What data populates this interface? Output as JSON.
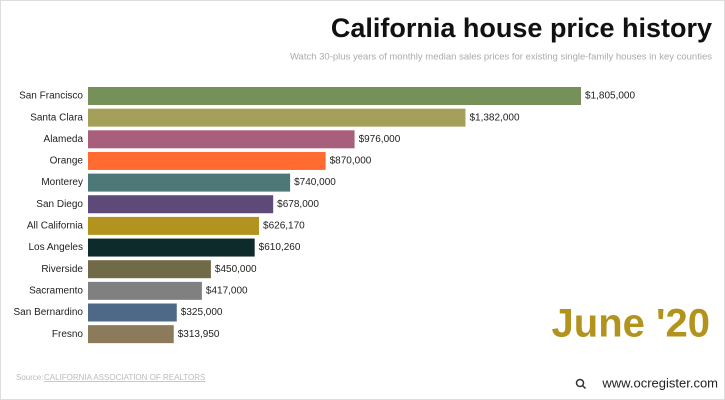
{
  "chart_data": {
    "type": "bar",
    "orientation": "horizontal",
    "title": "California house price history",
    "subtitle": "Watch 30-plus years of monthly median sales prices for existing single-family houses in key counties",
    "categories": [
      "San Francisco",
      "Santa Clara",
      "Alameda",
      "Orange",
      "Monterey",
      "San Diego",
      "All California",
      "Los Angeles",
      "Riverside",
      "Sacramento",
      "San Bernardino",
      "Fresno"
    ],
    "values": [
      1805000,
      1382000,
      976000,
      870000,
      740000,
      678000,
      626170,
      610260,
      450000,
      417000,
      325000,
      313950
    ],
    "value_labels": [
      "$1,805,000",
      "$1,382,000",
      "$976,000",
      "$870,000",
      "$740,000",
      "$678,000",
      "$626,170",
      "$610,260",
      "$450,000",
      "$417,000",
      "$325,000",
      "$313,950"
    ],
    "colors": [
      "#76905a",
      "#a4a05a",
      "#a85f7b",
      "#ff6b30",
      "#4e7878",
      "#5e4a78",
      "#b2931d",
      "#0e2b2b",
      "#716a48",
      "#808080",
      "#4e6888",
      "#8b7b5b"
    ],
    "date_label": "June '20",
    "source_prefix": "Source:",
    "source": "CALIFORNIA ASSOCIATION OF REALTORS",
    "watermark": "www.ocregister.com"
  }
}
